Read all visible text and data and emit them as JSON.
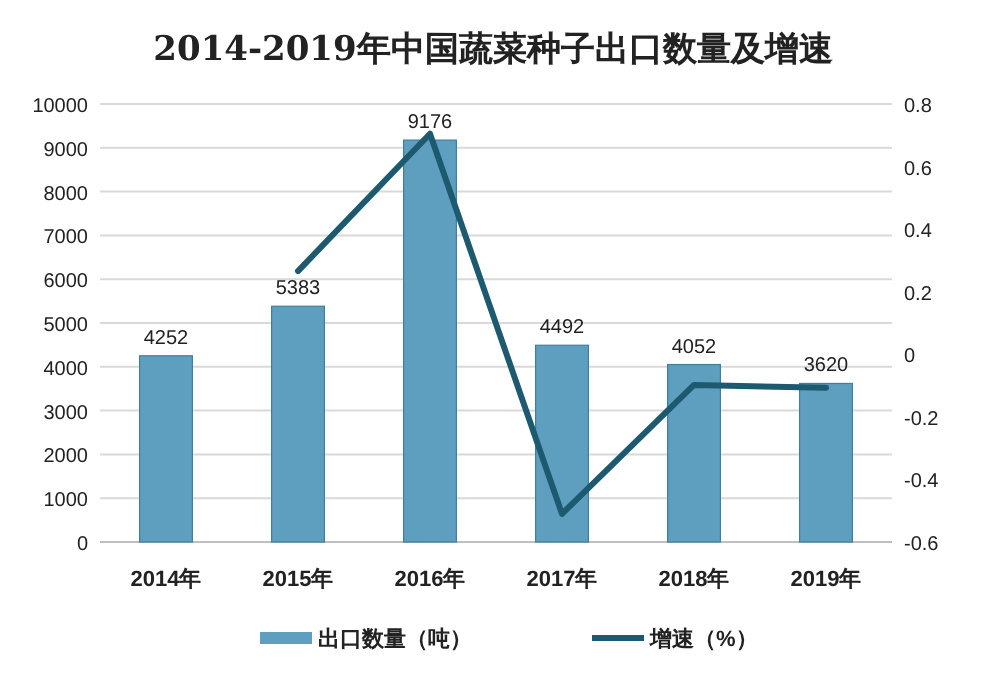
{
  "chart_data": {
    "type": "bar",
    "title": "2014-2019年中国蔬菜种子出口数量及增速",
    "categories": [
      "2014年",
      "2015年",
      "2016年",
      "2017年",
      "2018年",
      "2019年"
    ],
    "series": [
      {
        "name": "出口数量（吨）",
        "color": "#5e9fc0",
        "values": [
          4252,
          5383,
          9176,
          4492,
          4052,
          3620
        ],
        "data_labels": true
      },
      {
        "name": "增速（%）",
        "type": "line",
        "axis": "y2",
        "color": "#1d5a70",
        "values": [
          null,
          0.266,
          0.705,
          -0.51,
          -0.098,
          -0.107
        ]
      }
    ],
    "ylim": [
      0,
      10000
    ],
    "yticks": [
      0,
      1000,
      2000,
      3000,
      4000,
      5000,
      6000,
      7000,
      8000,
      9000,
      10000
    ],
    "y2lim": [
      -0.6,
      0.8
    ],
    "y2ticks": [
      -0.6,
      -0.4,
      -0.2,
      0,
      0.2,
      0.4,
      0.6,
      0.8
    ],
    "grid": "y",
    "legend": "bottom",
    "marker": "none"
  }
}
